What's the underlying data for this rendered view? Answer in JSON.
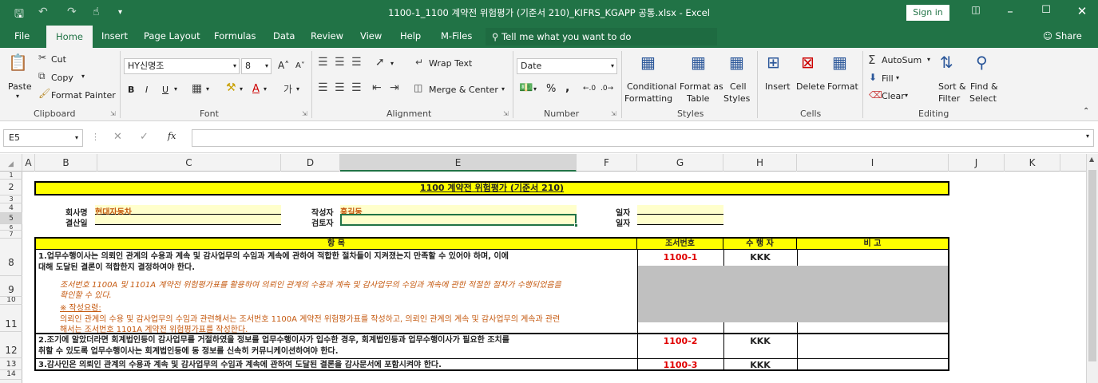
{
  "window": {
    "title": "1100-1_1100 계약전 위험평가 (기준서 210)_KIFRS_KGAPP 공통.xlsx - Excel",
    "sign_in": "Sign in"
  },
  "menu": {
    "tabs": [
      "File",
      "Home",
      "Insert",
      "Page Layout",
      "Formulas",
      "Data",
      "Review",
      "View",
      "Help",
      "M-Files"
    ],
    "tell_me": "Tell me what you want to do",
    "share": "Share"
  },
  "ribbon": {
    "clipboard": {
      "paste": "Paste",
      "cut": "Cut",
      "copy": "Copy",
      "format_painter": "Format Painter",
      "label": "Clipboard"
    },
    "font": {
      "name": "HY신명조",
      "size": "8",
      "bold": "B",
      "italic": "I",
      "underline": "U",
      "label": "Font"
    },
    "alignment": {
      "wrap": "Wrap Text",
      "merge": "Merge & Center",
      "label": "Alignment"
    },
    "number": {
      "format": "Date",
      "percent": "%",
      "comma": ",",
      "label": "Number"
    },
    "styles": {
      "conditional": "Conditional",
      "conditional2": "Formatting",
      "format_as": "Format as",
      "table": "Table",
      "cell": "Cell",
      "cell2": "Styles",
      "label": "Styles"
    },
    "cells": {
      "insert": "Insert",
      "delete": "Delete",
      "format": "Format",
      "label": "Cells"
    },
    "editing": {
      "autosum": "AutoSum",
      "fill": "Fill",
      "clear": "Clear",
      "sort": "Sort &",
      "sort2": "Filter",
      "find": "Find &",
      "find2": "Select",
      "label": "Editing"
    }
  },
  "formula_bar": {
    "name_box": "E5",
    "fx": "fx",
    "value": ""
  },
  "columns": [
    "A",
    "B",
    "C",
    "D",
    "E",
    "F",
    "G",
    "H",
    "I",
    "J",
    "K"
  ],
  "rows": [
    "1",
    "2",
    "3",
    "4",
    "5",
    "6",
    "7",
    "8",
    "9",
    "10",
    "11",
    "12",
    "13",
    "14"
  ],
  "sheet": {
    "title": "1100 계약전 위험평가 (기준서 210)",
    "company_label": "회사명",
    "company_value": "현대자동차",
    "closing_label": "결산일",
    "author_label": "작성자",
    "author_value": "홍길동",
    "reviewer_label": "검토자",
    "date_label1": "일자",
    "date_label2": "일자",
    "header_item": "항 목",
    "header_ref": "조서번호",
    "header_performer": "수 행 자",
    "header_note": "비 고",
    "item1_line1": "1.업무수행이사는 의뢰인 관계의 수용과 계속 및 감사업무의 수임과 계속에 관하여 적합한 절차들이 지켜졌는지 만족할 수 있어야 하며, 이에",
    "item1_line2": "대해 도달된 결론이 적합한지 결정하여야 한다.",
    "item1_ref": "1100-1",
    "item1_perf": "KKK",
    "note_line1": "조서번호 1100A 및 1101A 계약전 위험평가표를 활용하여 의뢰인 관계의 수용과 계속 및 감사업무의 수임과 계속에 관한 적절한 절차가 수행되었음을",
    "note_line2": "확인할 수 있다.",
    "note_line3": "※ 작성요령:",
    "note_line4": "의뢰인 관계의 수용 및 감사업무의 수임과 관련해서는 조서번호 1100A 계약전 위험평가표를 작성하고, 의뢰인 관계의 계속 및 감사업무의 계속과 관련",
    "note_line5": "해서는 조서번호 1101A 계약전 위험평가표를 작성한다.",
    "item2_line1": "2.조기에 알았더라면 회계법인등이 감사업무를 거절하였을 정보를 업무수행이사가 입수한 경우, 회계법인등과 업무수행이사가 필요한 조치를",
    "item2_line2": "취할 수 있도록 업무수행이사는 회계법인등에 동 정보를 신속히 커뮤니케이션하여야 한다.",
    "item2_ref": "1100-2",
    "item2_perf": "KKK",
    "item3_line1": "3.감사인은 의뢰인 관계의 수용과 계속 및 감사업무의 수임과 계속에 관하여 도달된 결론을 감사문서에 포함시켜야 한다.",
    "item3_ref": "1100-3",
    "item3_perf": "KKK"
  },
  "colors": {
    "excel_green": "#217346",
    "title_fill": "#ffff00",
    "ref_red": "#e00000",
    "note_orange": "#c55a11",
    "gray_fill": "#c0c0c0",
    "input_fill": "#ffffcc"
  }
}
